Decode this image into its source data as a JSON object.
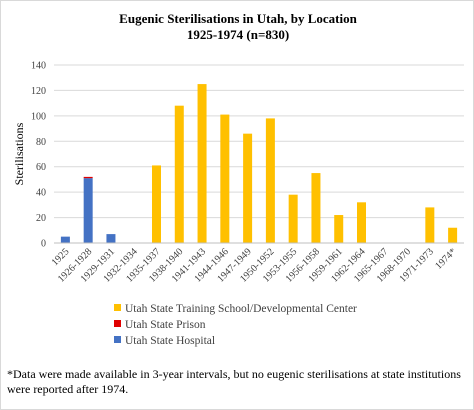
{
  "chart_data": {
    "type": "bar",
    "stacked": true,
    "title": "Eugenic Sterilisations in Utah, by Location",
    "subtitle": "1925-1974 (n=830)",
    "xlabel": "",
    "ylabel": "Sterilisations",
    "ylim": [
      0,
      140
    ],
    "yticks": [
      0,
      20,
      40,
      60,
      80,
      100,
      120,
      140
    ],
    "grid": true,
    "legend_position": "bottom",
    "categories": [
      "1925",
      "1926-1928",
      "1929-1931",
      "1932-1934",
      "1935-1937",
      "1938-1940",
      "1941-1943",
      "1944-1946",
      "1947-1949",
      "1950-1952",
      "1953-1955",
      "1956-1958",
      "1959-1961",
      "1962-1964",
      "1965-1967",
      "1968-1970",
      "1971-1973",
      "1974*"
    ],
    "series": [
      {
        "name": "Utah State Hospital",
        "color": "#4472c4",
        "values": [
          5,
          51,
          7,
          0,
          0,
          0,
          0,
          0,
          0,
          0,
          0,
          0,
          0,
          0,
          0,
          0,
          0,
          0
        ]
      },
      {
        "name": "Utah State Prison",
        "color": "#e00000",
        "values": [
          0,
          1,
          0,
          0,
          0,
          0,
          0,
          0,
          0,
          0,
          0,
          0,
          0,
          0,
          0,
          0,
          0,
          0
        ]
      },
      {
        "name": "Utah State Training School/Developmental Center",
        "color": "#ffc000",
        "values": [
          0,
          0,
          0,
          0,
          61,
          108,
          125,
          101,
          86,
          98,
          38,
          55,
          22,
          32,
          0,
          0,
          28,
          12
        ]
      }
    ],
    "legend_order": [
      2,
      1,
      0
    ]
  },
  "footnote": "*Data were made available in 3-year intervals, but no eugenic sterilisations at state institutions were reported after 1974."
}
